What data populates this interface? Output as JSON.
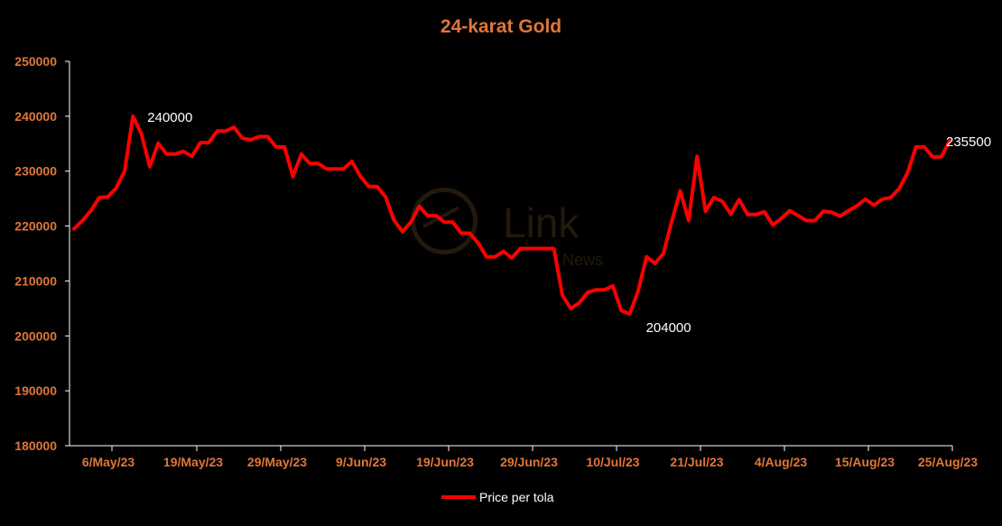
{
  "colors": {
    "background": "#000000",
    "line": "#ff0000",
    "axis_text": "#e0763a",
    "title": "#e0763a",
    "annotation": "#ffffff",
    "axis_line": "#ffffff"
  },
  "watermark": {
    "text": "Link",
    "subtext": "News"
  },
  "chart_data": {
    "type": "line",
    "title": "24-karat Gold",
    "xlabel": "",
    "ylabel": "",
    "ylim": [
      180000,
      250000
    ],
    "yticks": [
      180000,
      190000,
      200000,
      210000,
      220000,
      230000,
      240000,
      250000
    ],
    "xticks": [
      "6/May/23",
      "19/May/23",
      "29/May/23",
      "9/Jun/23",
      "19/Jun/23",
      "29/Jun/23",
      "10/Jul/23",
      "21/Jul/23",
      "4/Aug/23",
      "15/Aug/23",
      "25/Aug/23"
    ],
    "grid": false,
    "legend_position": "bottom",
    "series": [
      {
        "name": "Price per tola",
        "color": "#ff0000",
        "values": [
          219500,
          221000,
          222800,
          225200,
          225300,
          226900,
          230000,
          240000,
          236800,
          230800,
          235100,
          233100,
          233100,
          233600,
          232700,
          235200,
          235200,
          237300,
          237300,
          238000,
          236000,
          235700,
          236300,
          236300,
          234400,
          234400,
          229000,
          233100,
          231400,
          231400,
          230400,
          230400,
          230400,
          231800,
          229100,
          227200,
          227200,
          225300,
          221100,
          219000,
          220700,
          223600,
          221900,
          221900,
          220700,
          220700,
          218700,
          218700,
          216900,
          214400,
          214400,
          215400,
          214200,
          215900,
          215900,
          215900,
          215900,
          215900,
          207400,
          205000,
          206000,
          207900,
          208400,
          208400,
          209100,
          204600,
          204000,
          208200,
          214400,
          213200,
          215000,
          220900,
          226400,
          221000,
          232700,
          222700,
          225200,
          224500,
          222200,
          224800,
          222100,
          222100,
          222600,
          220200,
          221400,
          222800,
          221900,
          221000,
          221000,
          222700,
          222500,
          221800,
          222800,
          223700,
          224900,
          223800,
          224900,
          225200,
          226800,
          229700,
          234400,
          234400,
          232600,
          232600,
          235500
        ]
      }
    ],
    "annotations": [
      {
        "text": "240000",
        "point_index": 7
      },
      {
        "text": "204000",
        "point_index": 66
      },
      {
        "text": "235500",
        "point_index": 104
      }
    ]
  }
}
